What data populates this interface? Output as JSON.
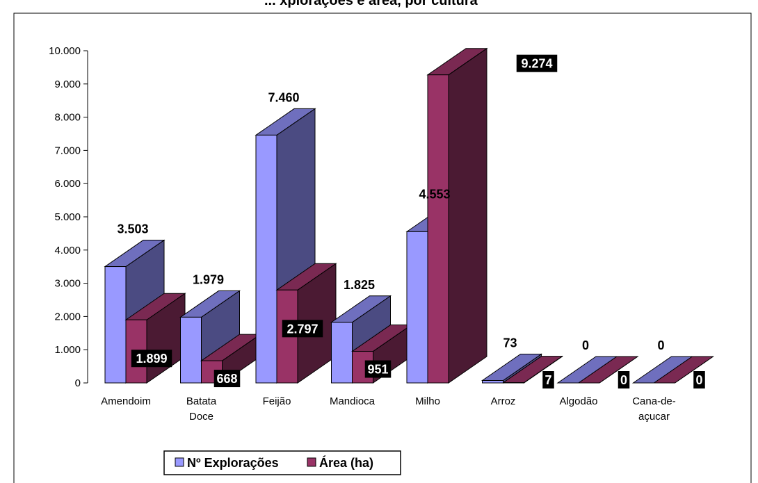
{
  "chart_data": {
    "type": "bar",
    "title": "... xplorações e área, por cultura",
    "categories": [
      [
        "Amendoim"
      ],
      [
        "Batata",
        "Doce"
      ],
      [
        "Feijão"
      ],
      [
        "Mandioca"
      ],
      [
        "Milho"
      ],
      [
        "Arroz"
      ],
      [
        "Algodão"
      ],
      [
        "Cana-de-",
        "açucar"
      ]
    ],
    "series": [
      {
        "name": "Nº Explorações",
        "values": [
          3503,
          1979,
          7460,
          1825,
          4553,
          73,
          0,
          0
        ],
        "labels": [
          "3.503",
          "1.979",
          "7.460",
          "1.825",
          "4.553",
          "73",
          "0",
          "0"
        ]
      },
      {
        "name": "Área (ha)",
        "values": [
          1899,
          668,
          2797,
          951,
          9274,
          7,
          0,
          0
        ],
        "labels": [
          "1.899",
          "668",
          "2.797",
          "951",
          "9.274",
          "7",
          "0",
          "0"
        ]
      }
    ],
    "yticks": [
      "0",
      "1.000",
      "2.000",
      "3.000",
      "4.000",
      "5.000",
      "6.000",
      "7.000",
      "8.000",
      "9.000",
      "10.000"
    ],
    "ylim": [
      0,
      10000
    ],
    "legend_position": "bottom-left",
    "grid": false,
    "colors": {
      "series1_front": "#9999ff",
      "series1_side": "#4b4b82",
      "series1_top": "#6f6fbe",
      "series2_front": "#993366",
      "series2_side": "#4b1a33",
      "series2_top": "#7a2952"
    }
  }
}
